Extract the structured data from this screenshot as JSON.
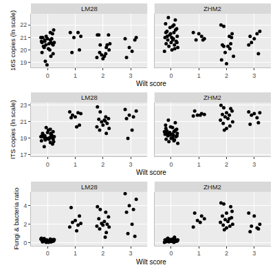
{
  "chart_data": [
    {
      "type": "scatter",
      "x_label": "Wilt score",
      "y_label": "16S copies (ln scale)",
      "xlim": [
        -0.6,
        3.6
      ],
      "xticks": [
        0,
        1,
        2,
        3
      ],
      "ylim": [
        18.6,
        22.9
      ],
      "yticks": [
        19,
        20,
        21,
        22
      ],
      "grid": true,
      "color": "#000000",
      "marker": "circle",
      "series": [
        {
          "name": "LM28",
          "x": [
            -0.2,
            -0.1,
            0.05,
            0.15,
            -0.18,
            0.2,
            0.1,
            -0.05,
            0.22,
            0.18,
            -0.12,
            0.08,
            -0.2,
            0.12,
            -0.08,
            -0.02,
            0.24,
            -0.22,
            0.0,
            -0.15,
            0.1,
            0.17,
            -0.1,
            0.03,
            0.2,
            -0.24,
            0.12,
            -0.06,
            0.82,
            1.1,
            1.2,
            0.95,
            1.15,
            0.88,
            1.8,
            1.85,
            1.9,
            2.2,
            2.15,
            2.1,
            1.95,
            2.05,
            1.78,
            2.25,
            2.0,
            1.88,
            2.12,
            2.22,
            2.8,
            3.2,
            3.15,
            2.95,
            3.05,
            2.85
          ],
          "values": [
            20.6,
            20.7,
            20.5,
            20.9,
            21.0,
            20.4,
            20.8,
            21.1,
            21.6,
            21.3,
            20.2,
            20.0,
            19.8,
            19.5,
            19.1,
            18.8,
            20.6,
            20.7,
            20.9,
            20.3,
            21.4,
            20.5,
            20.8,
            20.1,
            19.7,
            21.0,
            20.6,
            20.4,
            21.4,
            21.4,
            21.1,
            21.0,
            20.0,
            19.8,
            21.2,
            21.2,
            20.4,
            21.2,
            20.4,
            19.7,
            19.6,
            19.5,
            19.4,
            20.5,
            19.3,
            19.8,
            20.2,
            20.0,
            20.9,
            21.0,
            20.8,
            20.2,
            19.9,
            19.4
          ]
        },
        {
          "name": "ZHM2",
          "x": [
            -0.1,
            0.15,
            -0.2,
            0.05,
            0.2,
            -0.15,
            0.1,
            -0.05,
            0.22,
            -0.22,
            0.08,
            -0.12,
            0.18,
            0.0,
            -0.18,
            0.12,
            -0.08,
            0.24,
            0.03,
            -0.24,
            -0.02,
            0.16,
            0.06,
            -0.14,
            0.1,
            0.21,
            -0.19,
            -0.04,
            0.13,
            0.02,
            0.8,
            1.0,
            1.1,
            1.2,
            0.9,
            1.15,
            1.8,
            1.9,
            2.2,
            2.1,
            1.85,
            2.15,
            2.05,
            1.95,
            2.25,
            1.82,
            2.0,
            2.12,
            2.18,
            1.9,
            2.8,
            2.9,
            3.2,
            3.1,
            3.0,
            2.85,
            3.15
          ],
          "values": [
            22.6,
            22.4,
            22.1,
            21.9,
            21.7,
            21.5,
            21.4,
            21.2,
            21.1,
            21.0,
            20.9,
            20.8,
            20.7,
            20.6,
            20.5,
            20.4,
            20.3,
            20.2,
            20.0,
            19.9,
            21.3,
            21.6,
            20.8,
            21.1,
            22.0,
            20.6,
            21.4,
            21.8,
            20.1,
            21.0,
            21.4,
            21.3,
            21.1,
            20.9,
            20.8,
            20.8,
            22.0,
            21.9,
            21.3,
            21.1,
            20.4,
            20.5,
            20.3,
            19.8,
            19.5,
            19.2,
            18.9,
            20.1,
            21.0,
            20.3,
            20.4,
            20.6,
            21.5,
            21.3,
            20.9,
            21.1,
            19.7
          ]
        }
      ]
    },
    {
      "type": "scatter",
      "x_label": "Wilt score",
      "y_label": "ITS copies (ln scale)",
      "xlim": [
        -0.6,
        3.6
      ],
      "xticks": [
        0,
        1,
        2,
        3
      ],
      "ylim": [
        16.8,
        23.3
      ],
      "yticks": [
        17,
        19,
        21,
        23
      ],
      "grid": true,
      "color": "#000000",
      "marker": "circle",
      "series": [
        {
          "name": "LM28",
          "x": [
            -0.2,
            -0.1,
            0.05,
            0.15,
            -0.18,
            0.2,
            0.1,
            -0.05,
            0.22,
            0.18,
            -0.12,
            0.08,
            -0.2,
            0.12,
            -0.08,
            -0.02,
            0.24,
            -0.22,
            0.0,
            -0.15,
            0.1,
            0.17,
            -0.1,
            0.03,
            0.2,
            -0.24,
            0.12,
            -0.06,
            0.8,
            1.1,
            1.2,
            0.9,
            1.0,
            0.85,
            1.15,
            1.05,
            1.8,
            1.9,
            2.1,
            2.2,
            1.85,
            2.05,
            1.95,
            2.15,
            2.0,
            1.78,
            2.22,
            1.88,
            2.12,
            2.08,
            2.8,
            3.2,
            2.95,
            3.1,
            2.85,
            3.05,
            2.9
          ],
          "values": [
            19.2,
            19.0,
            18.9,
            19.4,
            19.6,
            19.8,
            20.1,
            20.3,
            18.6,
            18.3,
            18.0,
            19.1,
            19.3,
            19.5,
            18.8,
            19.0,
            19.2,
            18.7,
            19.7,
            19.4,
            18.5,
            19.1,
            19.3,
            20.0,
            18.9,
            19.2,
            19.6,
            19.0,
            22.2,
            22.1,
            22.0,
            21.8,
            21.6,
            21.5,
            20.6,
            20.4,
            22.8,
            22.2,
            21.6,
            21.4,
            21.3,
            21.2,
            21.0,
            20.8,
            20.6,
            20.4,
            20.2,
            20.0,
            19.6,
            21.1,
            22.5,
            22.3,
            21.8,
            21.6,
            21.4,
            20.0,
            19.0
          ]
        },
        {
          "name": "ZHM2",
          "x": [
            -0.1,
            0.15,
            -0.2,
            0.05,
            0.2,
            -0.15,
            0.1,
            -0.05,
            0.22,
            -0.22,
            0.08,
            -0.12,
            0.18,
            0.0,
            -0.18,
            0.12,
            -0.08,
            0.24,
            0.03,
            -0.24,
            -0.02,
            0.16,
            0.06,
            -0.14,
            0.1,
            0.21,
            -0.19,
            -0.04,
            0.13,
            0.02,
            0.85,
            1.1,
            1.2,
            0.95,
            1.05,
            0.8,
            1.8,
            1.9,
            2.15,
            2.2,
            2.0,
            1.85,
            2.1,
            1.95,
            2.05,
            1.78,
            2.22,
            1.88,
            2.12,
            2.0,
            1.92,
            2.8,
            3.0,
            3.2,
            2.9,
            3.1,
            3.15,
            2.85
          ],
          "values": [
            21.2,
            20.9,
            20.6,
            20.3,
            20.1,
            19.9,
            19.8,
            19.7,
            19.6,
            19.5,
            19.4,
            19.3,
            19.2,
            19.0,
            18.9,
            18.8,
            18.6,
            18.4,
            19.5,
            19.8,
            20.4,
            20.0,
            19.1,
            19.6,
            18.7,
            19.3,
            20.2,
            19.4,
            19.9,
            19.0,
            22.3,
            22.0,
            21.9,
            21.8,
            21.8,
            21.7,
            23.0,
            22.7,
            22.6,
            22.3,
            22.1,
            21.9,
            21.8,
            21.6,
            21.4,
            21.2,
            21.0,
            20.8,
            20.5,
            20.2,
            20.0,
            22.2,
            22.0,
            22.1,
            21.8,
            21.5,
            20.9,
            20.7
          ]
        }
      ]
    },
    {
      "type": "scatter",
      "x_label": "Wilt score",
      "y_label": "Fungi & bacteria ratio",
      "xlim": [
        -0.6,
        3.6
      ],
      "xticks": [
        0,
        1,
        2,
        3
      ],
      "ylim": [
        -0.3,
        5.5
      ],
      "yticks": [
        0,
        2,
        4
      ],
      "grid": true,
      "color": "#000000",
      "marker": "circle",
      "series": [
        {
          "name": "LM28",
          "x": [
            -0.2,
            -0.1,
            0.05,
            0.15,
            -0.18,
            0.2,
            0.1,
            -0.05,
            0.22,
            0.18,
            -0.12,
            0.08,
            -0.2,
            0.12,
            -0.08,
            -0.02,
            0.24,
            -0.22,
            0.0,
            -0.15,
            0.1,
            0.17,
            -0.1,
            0.03,
            0.2,
            -0.24,
            0.12,
            -0.06,
            0.85,
            1.15,
            1.0,
            0.9,
            1.2,
            1.1,
            0.8,
            1.05,
            1.8,
            1.9,
            2.1,
            2.2,
            1.85,
            2.05,
            1.95,
            2.15,
            2.0,
            1.78,
            2.22,
            1.88,
            2.12,
            2.08,
            2.8,
            3.2,
            2.95,
            3.1,
            2.85,
            3.05,
            2.9,
            3.15
          ],
          "values": [
            0.3,
            0.2,
            0.15,
            0.25,
            0.1,
            0.35,
            0.4,
            0.05,
            0.2,
            0.3,
            0.45,
            0.15,
            0.25,
            0.1,
            0.2,
            0.3,
            0.35,
            0.5,
            0.1,
            0.2,
            0.25,
            0.15,
            0.3,
            0.05,
            0.2,
            0.4,
            0.1,
            0.25,
            3.8,
            2.9,
            2.4,
            2.2,
            2.1,
            1.9,
            1.7,
            1.3,
            3.9,
            3.6,
            3.3,
            2.8,
            2.6,
            2.3,
            2.1,
            2.0,
            1.9,
            1.8,
            1.7,
            1.5,
            1.1,
            0.6,
            5.3,
            4.7,
            4.0,
            3.6,
            3.3,
            2.0,
            1.0,
            0.7
          ]
        },
        {
          "name": "ZHM2",
          "x": [
            -0.1,
            0.15,
            -0.2,
            0.05,
            0.2,
            -0.15,
            0.1,
            -0.05,
            0.22,
            -0.22,
            0.08,
            -0.12,
            0.18,
            0.0,
            -0.18,
            0.12,
            -0.08,
            0.24,
            0.03,
            -0.24,
            -0.02,
            0.16,
            0.06,
            -0.14,
            0.1,
            0.21,
            -0.19,
            -0.04,
            0.13,
            0.02,
            0.85,
            1.1,
            1.2,
            0.95,
            1.05,
            0.8,
            1.8,
            1.9,
            2.15,
            2.2,
            2.0,
            1.85,
            2.1,
            1.95,
            2.05,
            1.78,
            2.22,
            1.88,
            2.12,
            2.0,
            1.92,
            2.18,
            2.8,
            3.0,
            3.2,
            2.9,
            3.1,
            3.15,
            2.85
          ],
          "values": [
            0.3,
            0.2,
            0.1,
            0.4,
            0.25,
            0.15,
            0.05,
            0.35,
            0.2,
            0.3,
            0.1,
            0.5,
            0.2,
            0.15,
            0.25,
            0.6,
            0.1,
            0.3,
            0.2,
            0.05,
            0.35,
            0.15,
            0.25,
            0.4,
            0.1,
            0.2,
            0.3,
            0.15,
            0.45,
            0.25,
            3.2,
            2.9,
            2.6,
            2.4,
            2.2,
            1.7,
            4.3,
            4.2,
            3.9,
            3.4,
            3.2,
            2.9,
            2.6,
            2.5,
            2.3,
            2.2,
            2.0,
            1.9,
            1.8,
            1.6,
            1.4,
            2.7,
            3.2,
            2.9,
            2.0,
            1.8,
            1.6,
            1.5,
            1.2
          ]
        }
      ]
    }
  ]
}
